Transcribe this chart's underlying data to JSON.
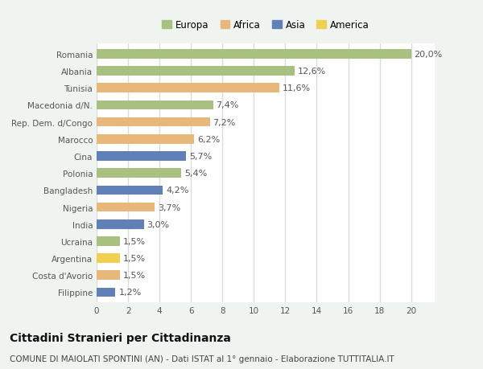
{
  "categories": [
    "Romania",
    "Albania",
    "Tunisia",
    "Macedonia d/N.",
    "Rep. Dem. d/Congo",
    "Marocco",
    "Cina",
    "Polonia",
    "Bangladesh",
    "Nigeria",
    "India",
    "Ucraina",
    "Argentina",
    "Costa d'Avorio",
    "Filippine"
  ],
  "values": [
    20.0,
    12.6,
    11.6,
    7.4,
    7.2,
    6.2,
    5.7,
    5.4,
    4.2,
    3.7,
    3.0,
    1.5,
    1.5,
    1.5,
    1.2
  ],
  "labels": [
    "20,0%",
    "12,6%",
    "11,6%",
    "7,4%",
    "7,2%",
    "6,2%",
    "5,7%",
    "5,4%",
    "4,2%",
    "3,7%",
    "3,0%",
    "1,5%",
    "1,5%",
    "1,5%",
    "1,2%"
  ],
  "continents": [
    "Europa",
    "Europa",
    "Africa",
    "Europa",
    "Africa",
    "Africa",
    "Asia",
    "Europa",
    "Asia",
    "Africa",
    "Asia",
    "Europa",
    "America",
    "Africa",
    "Asia"
  ],
  "continent_colors": {
    "Europa": "#a8c080",
    "Africa": "#e8b87a",
    "Asia": "#6080b8",
    "America": "#f0d050"
  },
  "legend_order": [
    "Europa",
    "Africa",
    "Asia",
    "America"
  ],
  "xlim": [
    0,
    20
  ],
  "xticks": [
    0,
    2,
    4,
    6,
    8,
    10,
    12,
    14,
    16,
    18,
    20
  ],
  "title": "Cittadini Stranieri per Cittadinanza",
  "subtitle": "COMUNE DI MAIOLATI SPONTINI (AN) - Dati ISTAT al 1° gennaio - Elaborazione TUTTITALIA.IT",
  "background_color": "#f0f4f0",
  "bar_area_color": "#ffffff",
  "grid_color": "#d8ddd8",
  "title_fontsize": 10,
  "subtitle_fontsize": 7.5,
  "label_fontsize": 8,
  "tick_fontsize": 7.5,
  "legend_fontsize": 8.5,
  "bar_height": 0.55
}
